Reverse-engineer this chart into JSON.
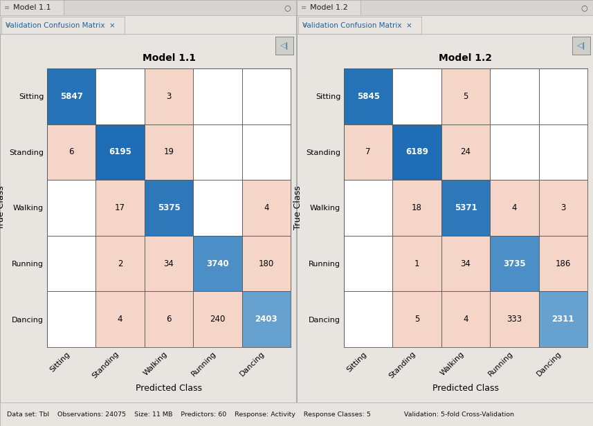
{
  "model1": {
    "title": "Model 1.1",
    "matrix": [
      [
        5847,
        0,
        3,
        0,
        0
      ],
      [
        6,
        6195,
        19,
        0,
        0
      ],
      [
        0,
        17,
        5375,
        0,
        4
      ],
      [
        0,
        2,
        34,
        3740,
        180
      ],
      [
        0,
        4,
        6,
        240,
        2403
      ]
    ]
  },
  "model2": {
    "title": "Model 1.2",
    "matrix": [
      [
        5845,
        0,
        5,
        0,
        0
      ],
      [
        7,
        6189,
        24,
        0,
        0
      ],
      [
        0,
        18,
        5371,
        4,
        3
      ],
      [
        0,
        1,
        34,
        3735,
        186
      ],
      [
        0,
        5,
        4,
        333,
        2311
      ]
    ]
  },
  "classes": [
    "Sitting",
    "Standing",
    "Walking",
    "Running",
    "Dancing"
  ],
  "xlabel": "Predicted Class",
  "ylabel": "True Class",
  "bg_color": "#d3d0cb",
  "panel_bg": "#e8e5e0",
  "tab_bg": "#e8e5e0",
  "active_tab_bg": "#e8e5e0",
  "sub_tab_bg": "#e8e5e0",
  "color_diag_max": "#1f6eb5",
  "color_diag_mid": "#5b9fd4",
  "color_diag_min": "#92c0e0",
  "color_off": "#f5d5c8",
  "color_zero": "#ffffff",
  "color_border": "#aaaaaa",
  "footer_text": "Data set: Tbl    Observations: 24075    Size: 11 MB    Predictors: 60    Response: Activity    Response Classes: 5                Validation: 5-fold Cross-Validation",
  "tab_label": "Validation Confusion Matrix",
  "model1_tab": "Model 1.1",
  "model2_tab": "Model 1.2",
  "title_fontsize": 10,
  "label_fontsize": 9,
  "tick_fontsize": 8,
  "cell_fontsize": 8.5
}
